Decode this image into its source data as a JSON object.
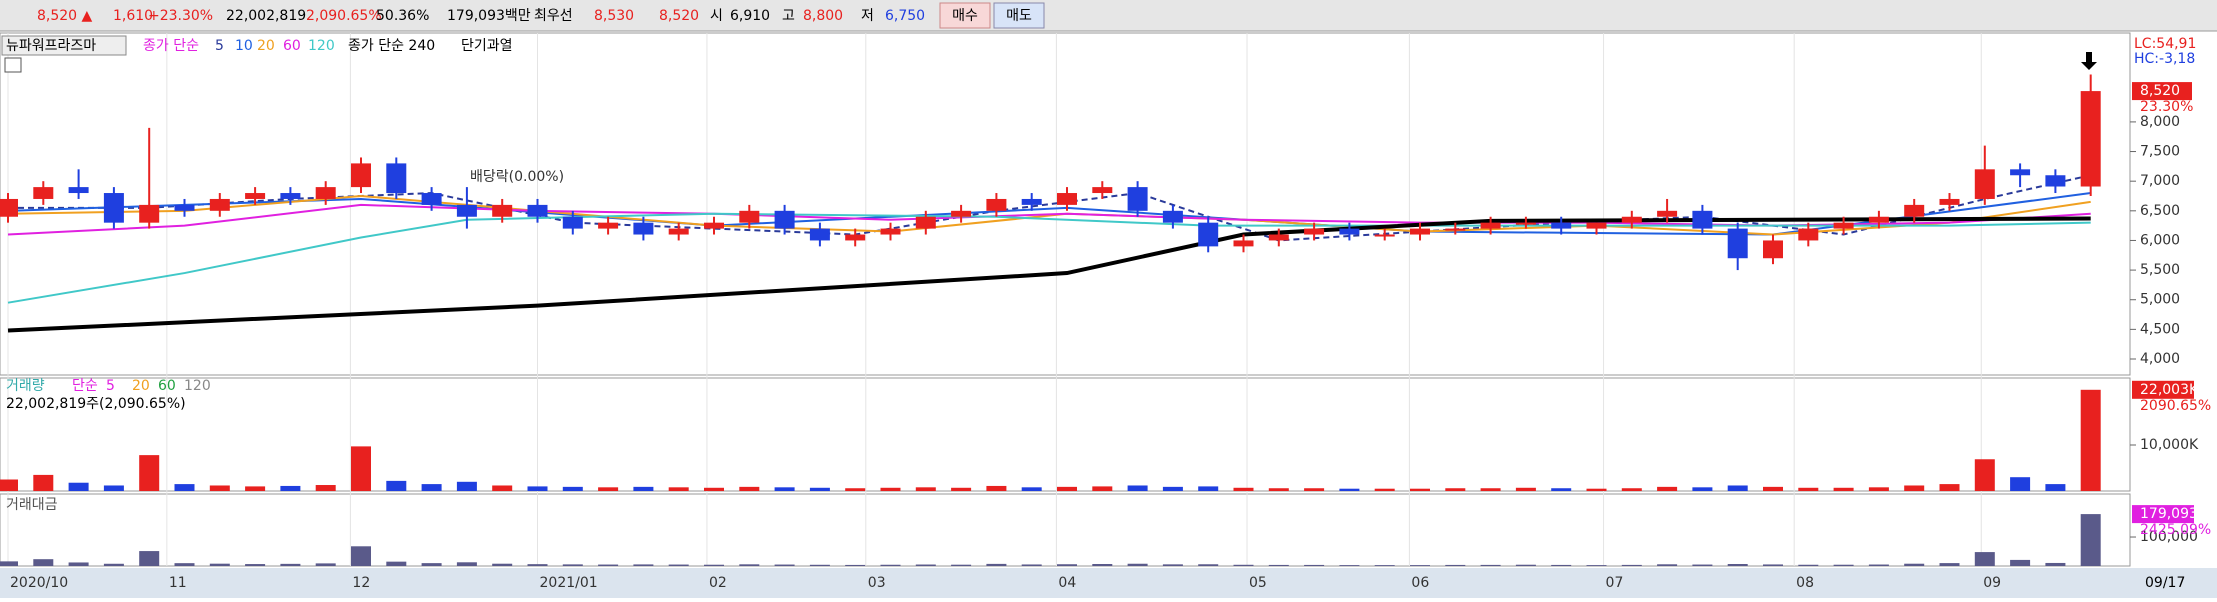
{
  "header": {
    "price": "8,520 ▲",
    "change": "1,610",
    "change_pct": "+23.30%",
    "volume": "22,002,819",
    "volume_pct": "2,090.65%",
    "turnover": "50.36%",
    "amount": "179,093백만",
    "best_label": "최우선",
    "ask": "8,530",
    "bid": "8,520",
    "open_label": "시",
    "open": "6,910",
    "high_label": "고",
    "high": "8,800",
    "low_label": "저",
    "low": "6,750",
    "buy": "매수",
    "sell": "매도"
  },
  "chart_data": [
    {
      "type": "candlestick",
      "title": "뉴파워프라즈마",
      "legend_prefix": "종가 단순",
      "badge": "단기과열",
      "annotation": "배당락(0.00%)",
      "lc": "LC:54,91",
      "hc": "HC:-3,18",
      "last_label": "8,520",
      "last_pct": "23.30%",
      "up_color": "#e8211f",
      "down_color": "#1f3fdf",
      "open": [
        6400,
        6700,
        6900,
        6800,
        6300,
        6600,
        6500,
        6700,
        6800,
        6700,
        6900,
        7300,
        6800,
        6600,
        6400,
        6600,
        6400,
        6200,
        6300,
        6100,
        6200,
        6300,
        6500,
        6200,
        6000,
        6100,
        6200,
        6400,
        6500,
        6700,
        6600,
        6800,
        6900,
        6500,
        6300,
        5900,
        6000,
        6100,
        6200,
        6100,
        6100,
        6200,
        6200,
        6300,
        6300,
        6200,
        6300,
        6400,
        6500,
        6200,
        5700,
        6000,
        6200,
        6300,
        6400,
        6600,
        6700,
        7200,
        7100,
        6910
      ],
      "high": [
        6800,
        7000,
        7200,
        6900,
        7900,
        6700,
        6800,
        6900,
        6900,
        7000,
        7400,
        7400,
        6900,
        6900,
        6700,
        6700,
        6500,
        6400,
        6400,
        6300,
        6400,
        6600,
        6600,
        6300,
        6200,
        6300,
        6500,
        6600,
        6800,
        6800,
        6900,
        7000,
        7000,
        6600,
        6400,
        6100,
        6200,
        6300,
        6300,
        6200,
        6300,
        6300,
        6400,
        6400,
        6400,
        6300,
        6500,
        6700,
        6600,
        6300,
        6100,
        6300,
        6400,
        6500,
        6700,
        6800,
        7600,
        7300,
        7200,
        8800
      ],
      "low": [
        6300,
        6600,
        6700,
        6200,
        6200,
        6400,
        6400,
        6600,
        6600,
        6600,
        6800,
        6700,
        6500,
        6200,
        6300,
        6300,
        6100,
        6100,
        6000,
        6000,
        6100,
        6200,
        6100,
        5900,
        5900,
        6000,
        6100,
        6300,
        6400,
        6500,
        6500,
        6700,
        6400,
        6200,
        5800,
        5800,
        5900,
        6000,
        6000,
        6000,
        6000,
        6100,
        6100,
        6200,
        6100,
        6100,
        6200,
        6300,
        6100,
        5500,
        5600,
        5900,
        6100,
        6200,
        6300,
        6500,
        6600,
        6900,
        6800,
        6750
      ],
      "close": [
        6700,
        6900,
        6800,
        6300,
        6600,
        6500,
        6700,
        6800,
        6700,
        6900,
        7300,
        6800,
        6600,
        6400,
        6600,
        6400,
        6200,
        6300,
        6100,
        6200,
        6300,
        6500,
        6200,
        6000,
        6100,
        6200,
        6400,
        6500,
        6700,
        6600,
        6800,
        6900,
        6500,
        6300,
        5900,
        6000,
        6100,
        6200,
        6100,
        6100,
        6200,
        6200,
        6300,
        6300,
        6200,
        6300,
        6400,
        6500,
        6200,
        5700,
        6000,
        6200,
        6300,
        6400,
        6600,
        6700,
        7200,
        7100,
        6910,
        8520
      ],
      "series": [
        {
          "name": "5",
          "color": "#2a3a9a",
          "dashed": true,
          "x": [
            0,
            4,
            8,
            12,
            16,
            20,
            24,
            28,
            32,
            36,
            40,
            44,
            48,
            52,
            56,
            59
          ],
          "values": [
            6550,
            6550,
            6700,
            6800,
            6300,
            6200,
            6100,
            6500,
            6800,
            6000,
            6150,
            6300,
            6400,
            6100,
            6700,
            7100
          ]
        },
        {
          "name": "10",
          "color": "#2060e0",
          "dashed": false,
          "x": [
            0,
            10,
            20,
            30,
            40,
            50,
            59
          ],
          "values": [
            6500,
            6700,
            6250,
            6550,
            6150,
            6100,
            6800
          ]
        },
        {
          "name": "20",
          "color": "#f0a020",
          "dashed": false,
          "x": [
            0,
            5,
            10,
            15,
            20,
            25,
            30,
            35,
            40,
            45,
            50,
            55,
            59
          ],
          "values": [
            6450,
            6500,
            6750,
            6500,
            6250,
            6150,
            6450,
            6350,
            6150,
            6250,
            6100,
            6300,
            6650
          ]
        },
        {
          "name": "60",
          "color": "#e020e0",
          "dashed": false,
          "x": [
            0,
            5,
            10,
            15,
            20,
            25,
            30,
            35,
            40,
            45,
            50,
            55,
            59
          ],
          "values": [
            6100,
            6250,
            6600,
            6500,
            6450,
            6350,
            6450,
            6350,
            6300,
            6300,
            6250,
            6300,
            6450
          ]
        },
        {
          "name": "120",
          "color": "#40c8c8",
          "dashed": false,
          "x": [
            0,
            5,
            10,
            13,
            20,
            28,
            34,
            45,
            55,
            59
          ],
          "values": [
            4950,
            5450,
            6050,
            6350,
            6450,
            6400,
            6250,
            6250,
            6250,
            6300
          ]
        },
        {
          "name": "종가 단순 240",
          "color": "#000000",
          "dashed": false,
          "x": [
            0,
            15,
            30,
            35,
            42,
            59
          ],
          "values": [
            4480,
            4900,
            5450,
            6100,
            6330,
            6370
          ]
        }
      ],
      "ylim": [
        3730,
        9500
      ],
      "yticks": [
        {
          "value": 4000,
          "label": "4,000"
        },
        {
          "value": 4500,
          "label": "4,500"
        },
        {
          "value": 5000,
          "label": "5,000"
        },
        {
          "value": 5500,
          "label": "5,500"
        },
        {
          "value": 6000,
          "label": "6,000"
        },
        {
          "value": 6500,
          "label": "6,500"
        },
        {
          "value": 7000,
          "label": "7,000"
        },
        {
          "value": 7500,
          "label": "7,500"
        },
        {
          "value": 8000,
          "label": "8,000"
        }
      ],
      "xticks": [
        {
          "value": 0,
          "label": "2020/10"
        },
        {
          "value": 4.5,
          "label": "11"
        },
        {
          "value": 9.7,
          "label": "12"
        },
        {
          "value": 15,
          "label": "2021/01"
        },
        {
          "value": 19.8,
          "label": "02"
        },
        {
          "value": 24.3,
          "label": "03"
        },
        {
          "value": 29.7,
          "label": "04"
        },
        {
          "value": 35.1,
          "label": "05"
        },
        {
          "value": 39.7,
          "label": "06"
        },
        {
          "value": 45.2,
          "label": "07"
        },
        {
          "value": 50.6,
          "label": "08"
        },
        {
          "value": 55.9,
          "label": "09"
        }
      ],
      "x_end_label": "09/17"
    },
    {
      "type": "bar",
      "title": "거래량",
      "legend_prefix": "단순",
      "legend_items": [
        {
          "name": "5",
          "color": "#e020e0"
        },
        {
          "name": "20",
          "color": "#f0a020"
        },
        {
          "name": "60",
          "color": "#20a040"
        },
        {
          "name": "120",
          "color": "#888888"
        }
      ],
      "subtitle": "22,002,819주(2,090.65%)",
      "value_box": "22,003K",
      "value_pct": "2090.65%",
      "values": [
        2500,
        3500,
        1800,
        1200,
        7800,
        1500,
        1200,
        1000,
        1100,
        1300,
        9700,
        2200,
        1500,
        2000,
        1200,
        1000,
        900,
        800,
        900,
        800,
        700,
        900,
        800,
        700,
        600,
        700,
        800,
        700,
        1100,
        800,
        900,
        1000,
        1200,
        900,
        1000,
        700,
        600,
        600,
        500,
        500,
        500,
        600,
        600,
        700,
        600,
        500,
        600,
        900,
        800,
        1200,
        900,
        700,
        700,
        800,
        1200,
        1500,
        6900,
        3000,
        1500,
        22003
      ],
      "ylim": [
        0,
        24350
      ],
      "yticks": [
        {
          "value": 10000,
          "label": "10,000K"
        }
      ]
    },
    {
      "type": "bar",
      "title": "거래대금",
      "color": "#5a5a8a",
      "value_box": "179,093",
      "value_pct": "2425.09%",
      "values": [
        16000,
        23500,
        12200,
        7700,
        51500,
        9800,
        8000,
        6700,
        7400,
        9000,
        68000,
        15000,
        9900,
        12800,
        7900,
        6400,
        5600,
        5000,
        5500,
        5000,
        4400,
        5800,
        5000,
        4200,
        3700,
        4300,
        5100,
        4500,
        7300,
        5300,
        6100,
        6900,
        7800,
        5700,
        6000,
        4200,
        3700,
        3700,
        3100,
        3100,
        3100,
        3700,
        3800,
        4400,
        3700,
        3100,
        3800,
        5900,
        5000,
        6900,
        5400,
        4300,
        4400,
        5100,
        7900,
        10000,
        48000,
        21000,
        10500,
        179093
      ],
      "ylim": [
        0,
        245000
      ],
      "yticks": [
        {
          "value": 100000,
          "label": "100,000"
        }
      ]
    }
  ]
}
